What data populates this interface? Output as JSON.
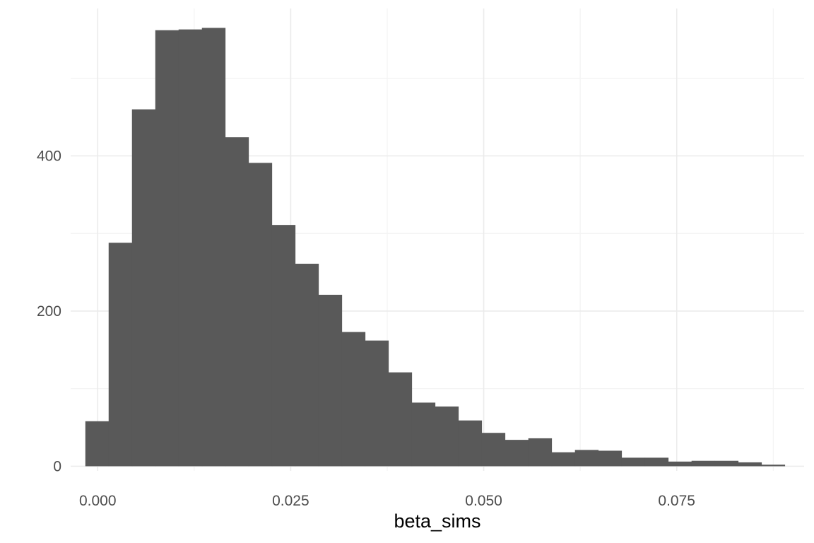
{
  "chart_data": {
    "type": "bar",
    "subtype": "histogram",
    "title": "",
    "xlabel": "beta_sims",
    "ylabel": "",
    "xlim": [
      -0.0035,
      0.0915
    ],
    "ylim": [
      -6,
      590
    ],
    "x_ticks": [
      0.0,
      0.025,
      0.05,
      0.075
    ],
    "x_tick_labels": [
      "0.000",
      "0.025",
      "0.050",
      "0.075"
    ],
    "y_ticks": [
      0,
      200,
      400
    ],
    "y_tick_labels": [
      "0",
      "200",
      "400"
    ],
    "grid": true,
    "legend": "none",
    "bar_color": "#595959",
    "bin_width": 0.00302,
    "bins_start": -0.0016,
    "values": [
      58,
      288,
      460,
      562,
      563,
      565,
      424,
      391,
      311,
      261,
      221,
      173,
      162,
      121,
      82,
      77,
      59,
      43,
      34,
      36,
      18,
      21,
      20,
      11,
      11,
      6,
      7,
      7,
      5,
      2
    ]
  }
}
